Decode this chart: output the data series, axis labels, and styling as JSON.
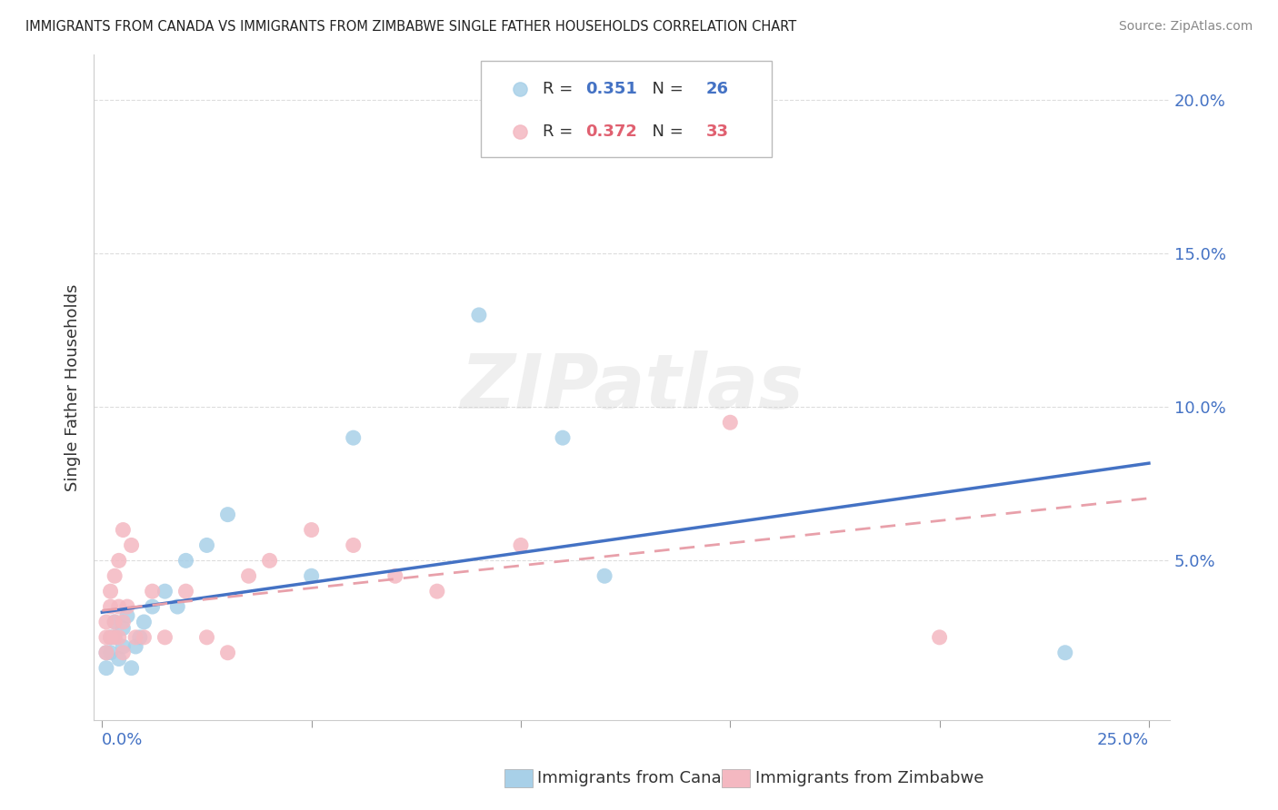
{
  "title": "IMMIGRANTS FROM CANADA VS IMMIGRANTS FROM ZIMBABWE SINGLE FATHER HOUSEHOLDS CORRELATION CHART",
  "source": "Source: ZipAtlas.com",
  "xlabel_canada": "Immigrants from Canada",
  "xlabel_zimbabwe": "Immigrants from Zimbabwe",
  "ylabel": "Single Father Households",
  "xlim": [
    -0.002,
    0.255
  ],
  "ylim": [
    -0.002,
    0.215
  ],
  "xticks": [
    0.0,
    0.05,
    0.1,
    0.15,
    0.2,
    0.25
  ],
  "yticks": [
    0.05,
    0.1,
    0.15,
    0.2
  ],
  "ytick_labels": [
    "5.0%",
    "10.0%",
    "15.0%",
    "20.0%"
  ],
  "xtick_labels": [
    "0.0%",
    "",
    "",
    "",
    "",
    "25.0%"
  ],
  "canada_R": 0.351,
  "canada_N": 26,
  "zimbabwe_R": 0.372,
  "zimbabwe_N": 33,
  "canada_color": "#a8d0e8",
  "zimbabwe_color": "#f4b8c1",
  "canada_line_color": "#4472c4",
  "zimbabwe_line_color": "#e8a0aa",
  "watermark_text": "ZIPatlas",
  "canada_x": [
    0.001,
    0.001,
    0.002,
    0.002,
    0.003,
    0.003,
    0.004,
    0.005,
    0.005,
    0.006,
    0.007,
    0.008,
    0.009,
    0.01,
    0.012,
    0.015,
    0.018,
    0.02,
    0.025,
    0.03,
    0.05,
    0.06,
    0.09,
    0.11,
    0.12,
    0.23
  ],
  "canada_y": [
    0.02,
    0.015,
    0.025,
    0.02,
    0.03,
    0.025,
    0.018,
    0.022,
    0.028,
    0.032,
    0.015,
    0.022,
    0.025,
    0.03,
    0.035,
    0.04,
    0.035,
    0.05,
    0.055,
    0.065,
    0.045,
    0.09,
    0.13,
    0.09,
    0.045,
    0.02
  ],
  "zimbabwe_x": [
    0.001,
    0.001,
    0.001,
    0.002,
    0.002,
    0.002,
    0.003,
    0.003,
    0.003,
    0.004,
    0.004,
    0.004,
    0.005,
    0.005,
    0.005,
    0.006,
    0.007,
    0.008,
    0.01,
    0.012,
    0.015,
    0.02,
    0.025,
    0.03,
    0.035,
    0.04,
    0.05,
    0.06,
    0.07,
    0.08,
    0.1,
    0.15,
    0.2
  ],
  "zimbabwe_y": [
    0.02,
    0.025,
    0.03,
    0.025,
    0.035,
    0.04,
    0.025,
    0.03,
    0.045,
    0.025,
    0.035,
    0.05,
    0.02,
    0.03,
    0.06,
    0.035,
    0.055,
    0.025,
    0.025,
    0.04,
    0.025,
    0.04,
    0.025,
    0.02,
    0.045,
    0.05,
    0.06,
    0.055,
    0.045,
    0.04,
    0.055,
    0.095,
    0.025
  ]
}
